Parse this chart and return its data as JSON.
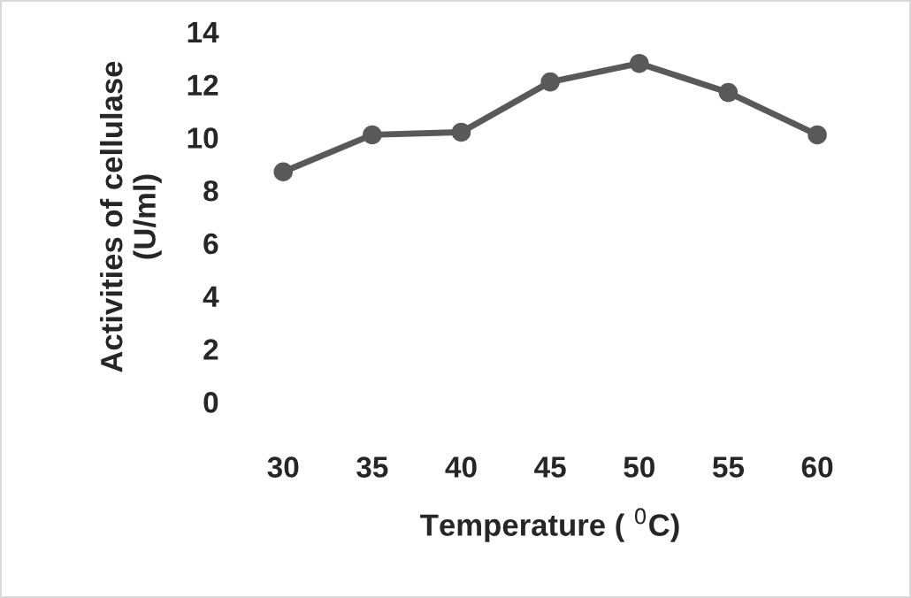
{
  "chart_data": {
    "type": "line",
    "xlabel": "Temperature ( $^{0}$C)",
    "ylabel": "Activities of cellulase\n(U/ml)",
    "categories": [
      "30",
      "35",
      "40",
      "45",
      "50",
      "55",
      "60"
    ],
    "series": [
      {
        "color": "#595959",
        "values": [
          8.7,
          10.1,
          10.2,
          12.1,
          12.8,
          11.7,
          10.1
        ]
      }
    ],
    "ylim": [
      0,
      14
    ],
    "yticks": [
      0,
      2,
      4,
      6,
      8,
      10,
      12,
      14
    ],
    "grid": false,
    "marker": "circle",
    "line_style": "solid"
  }
}
